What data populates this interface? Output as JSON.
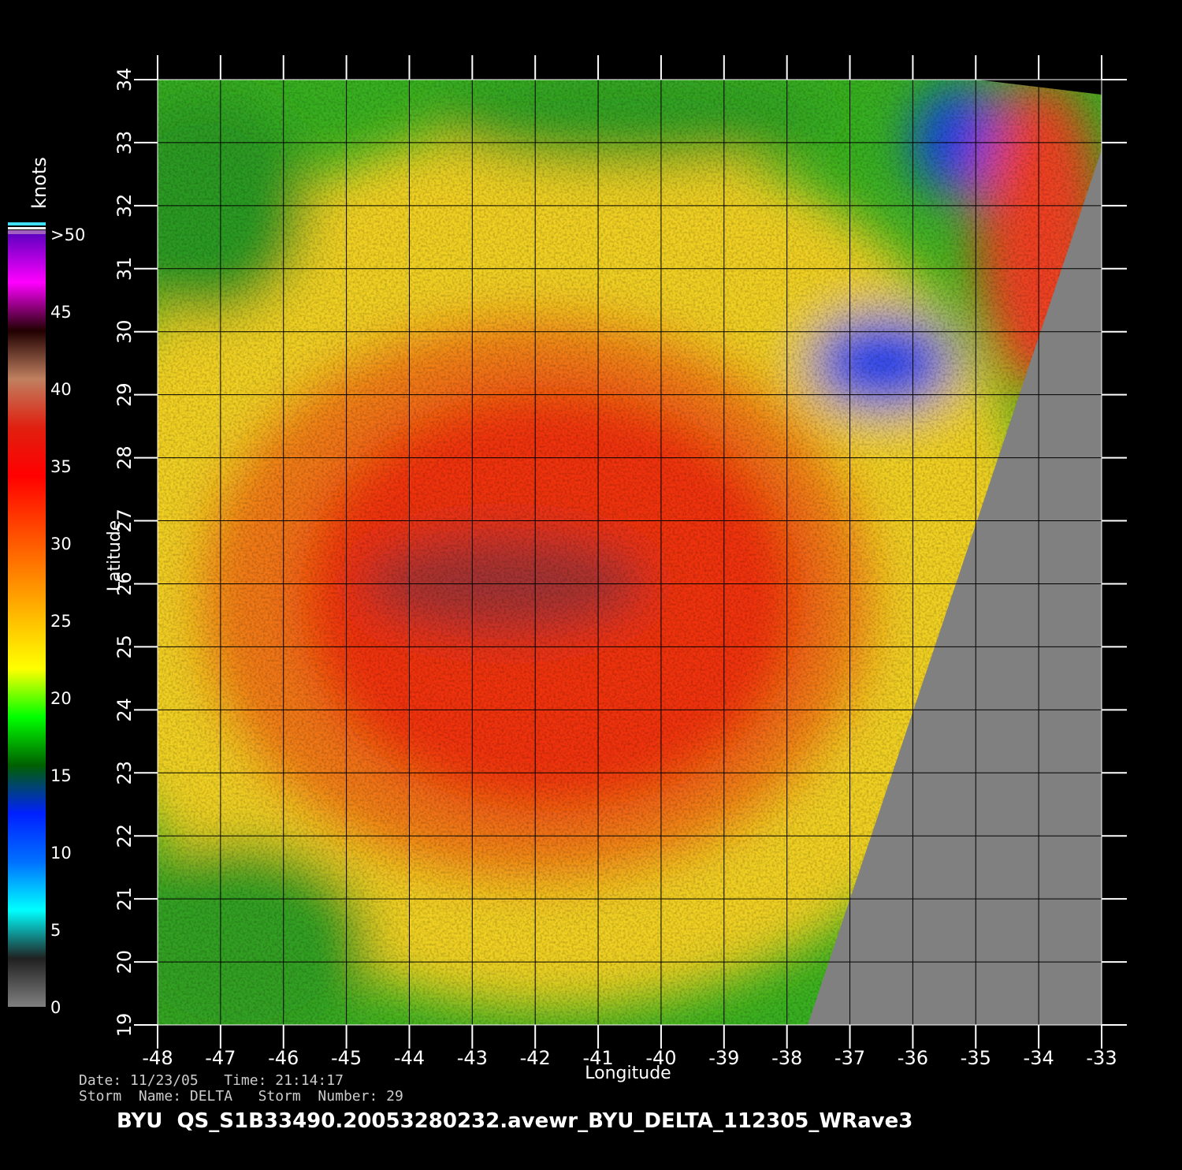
{
  "map": {
    "xlabel": "Longitude",
    "ylabel": "Latitude",
    "xlim": [
      -48,
      -33
    ],
    "ylim": [
      19,
      34
    ],
    "xticks": [
      -48,
      -47,
      -46,
      -45,
      -44,
      -43,
      -42,
      -41,
      -40,
      -39,
      -38,
      -37,
      -36,
      -35,
      -34,
      -33
    ],
    "yticks": [
      19,
      20,
      21,
      22,
      23,
      24,
      25,
      26,
      27,
      28,
      29,
      30,
      31,
      32,
      33,
      34
    ],
    "grid": true
  },
  "colorbar": {
    "unit": "knots",
    "lim": [
      0,
      50
    ],
    "ticks": [
      0,
      5,
      10,
      15,
      20,
      25,
      30,
      35,
      40,
      45,
      {
        "value": 50,
        "label": ">50"
      }
    ],
    "colors": [
      "#808080",
      "#202020",
      "#00ffff",
      "#0070ff",
      "#0020ff",
      "#006000",
      "#00ff00",
      "#ffff00",
      "#ffc000",
      "#ff8000",
      "#ff4000",
      "#ff0000",
      "#e02010",
      "#c08060",
      "#200000",
      "#ff00ff",
      "#6000c0"
    ]
  },
  "footer": {
    "date_line": "Date: 11/23/05   Time: 21:14:17",
    "storm_line": "Storm  Name: DELTA   Storm  Number: 29",
    "title": "BYU  QS_S1B33490.20053280232.avewr_BYU_DELTA_112305_WRave3"
  }
}
